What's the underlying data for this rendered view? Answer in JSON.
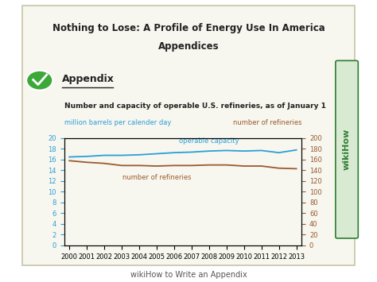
{
  "header": {
    "title": "Nothing to Lose: A Profile of Energy Use In America",
    "subtitle": "Appendices",
    "section": "Appendix"
  },
  "chart_data": {
    "type": "line",
    "title": "Number and capacity of operable U.S. refineries, as of January 1",
    "y_label": "million barrels per calender day",
    "y2_label": "number of refineries",
    "categories": [
      "2000",
      "2001",
      "2002",
      "2003",
      "2004",
      "2005",
      "2006",
      "2007",
      "2008",
      "2009",
      "2010",
      "2011",
      "2012",
      "2013"
    ],
    "series": [
      {
        "name": "operable capacity",
        "color": "#2b9fd9",
        "values": [
          16.5,
          16.6,
          16.8,
          16.8,
          16.9,
          17.1,
          17.3,
          17.4,
          17.6,
          17.7,
          17.6,
          17.7,
          17.3,
          17.8
        ]
      },
      {
        "name": "number of refineries",
        "color": "#9a5b2e",
        "axis": "y2",
        "values": [
          158,
          155,
          153,
          149,
          149,
          148,
          149,
          149,
          150,
          150,
          148,
          148,
          144,
          143
        ]
      }
    ],
    "ylim": [
      0,
      20
    ],
    "yticks": [
      0,
      2,
      4,
      6,
      8,
      10,
      12,
      14,
      16,
      18,
      20
    ],
    "y2lim": [
      0,
      200
    ],
    "y2ticks": [
      0,
      20,
      40,
      60,
      80,
      100,
      120,
      140,
      160,
      180,
      200
    ],
    "grid": false
  },
  "footer": {
    "text": "wikiHow to Write an Appendix",
    "watermark": "wikiHow"
  }
}
